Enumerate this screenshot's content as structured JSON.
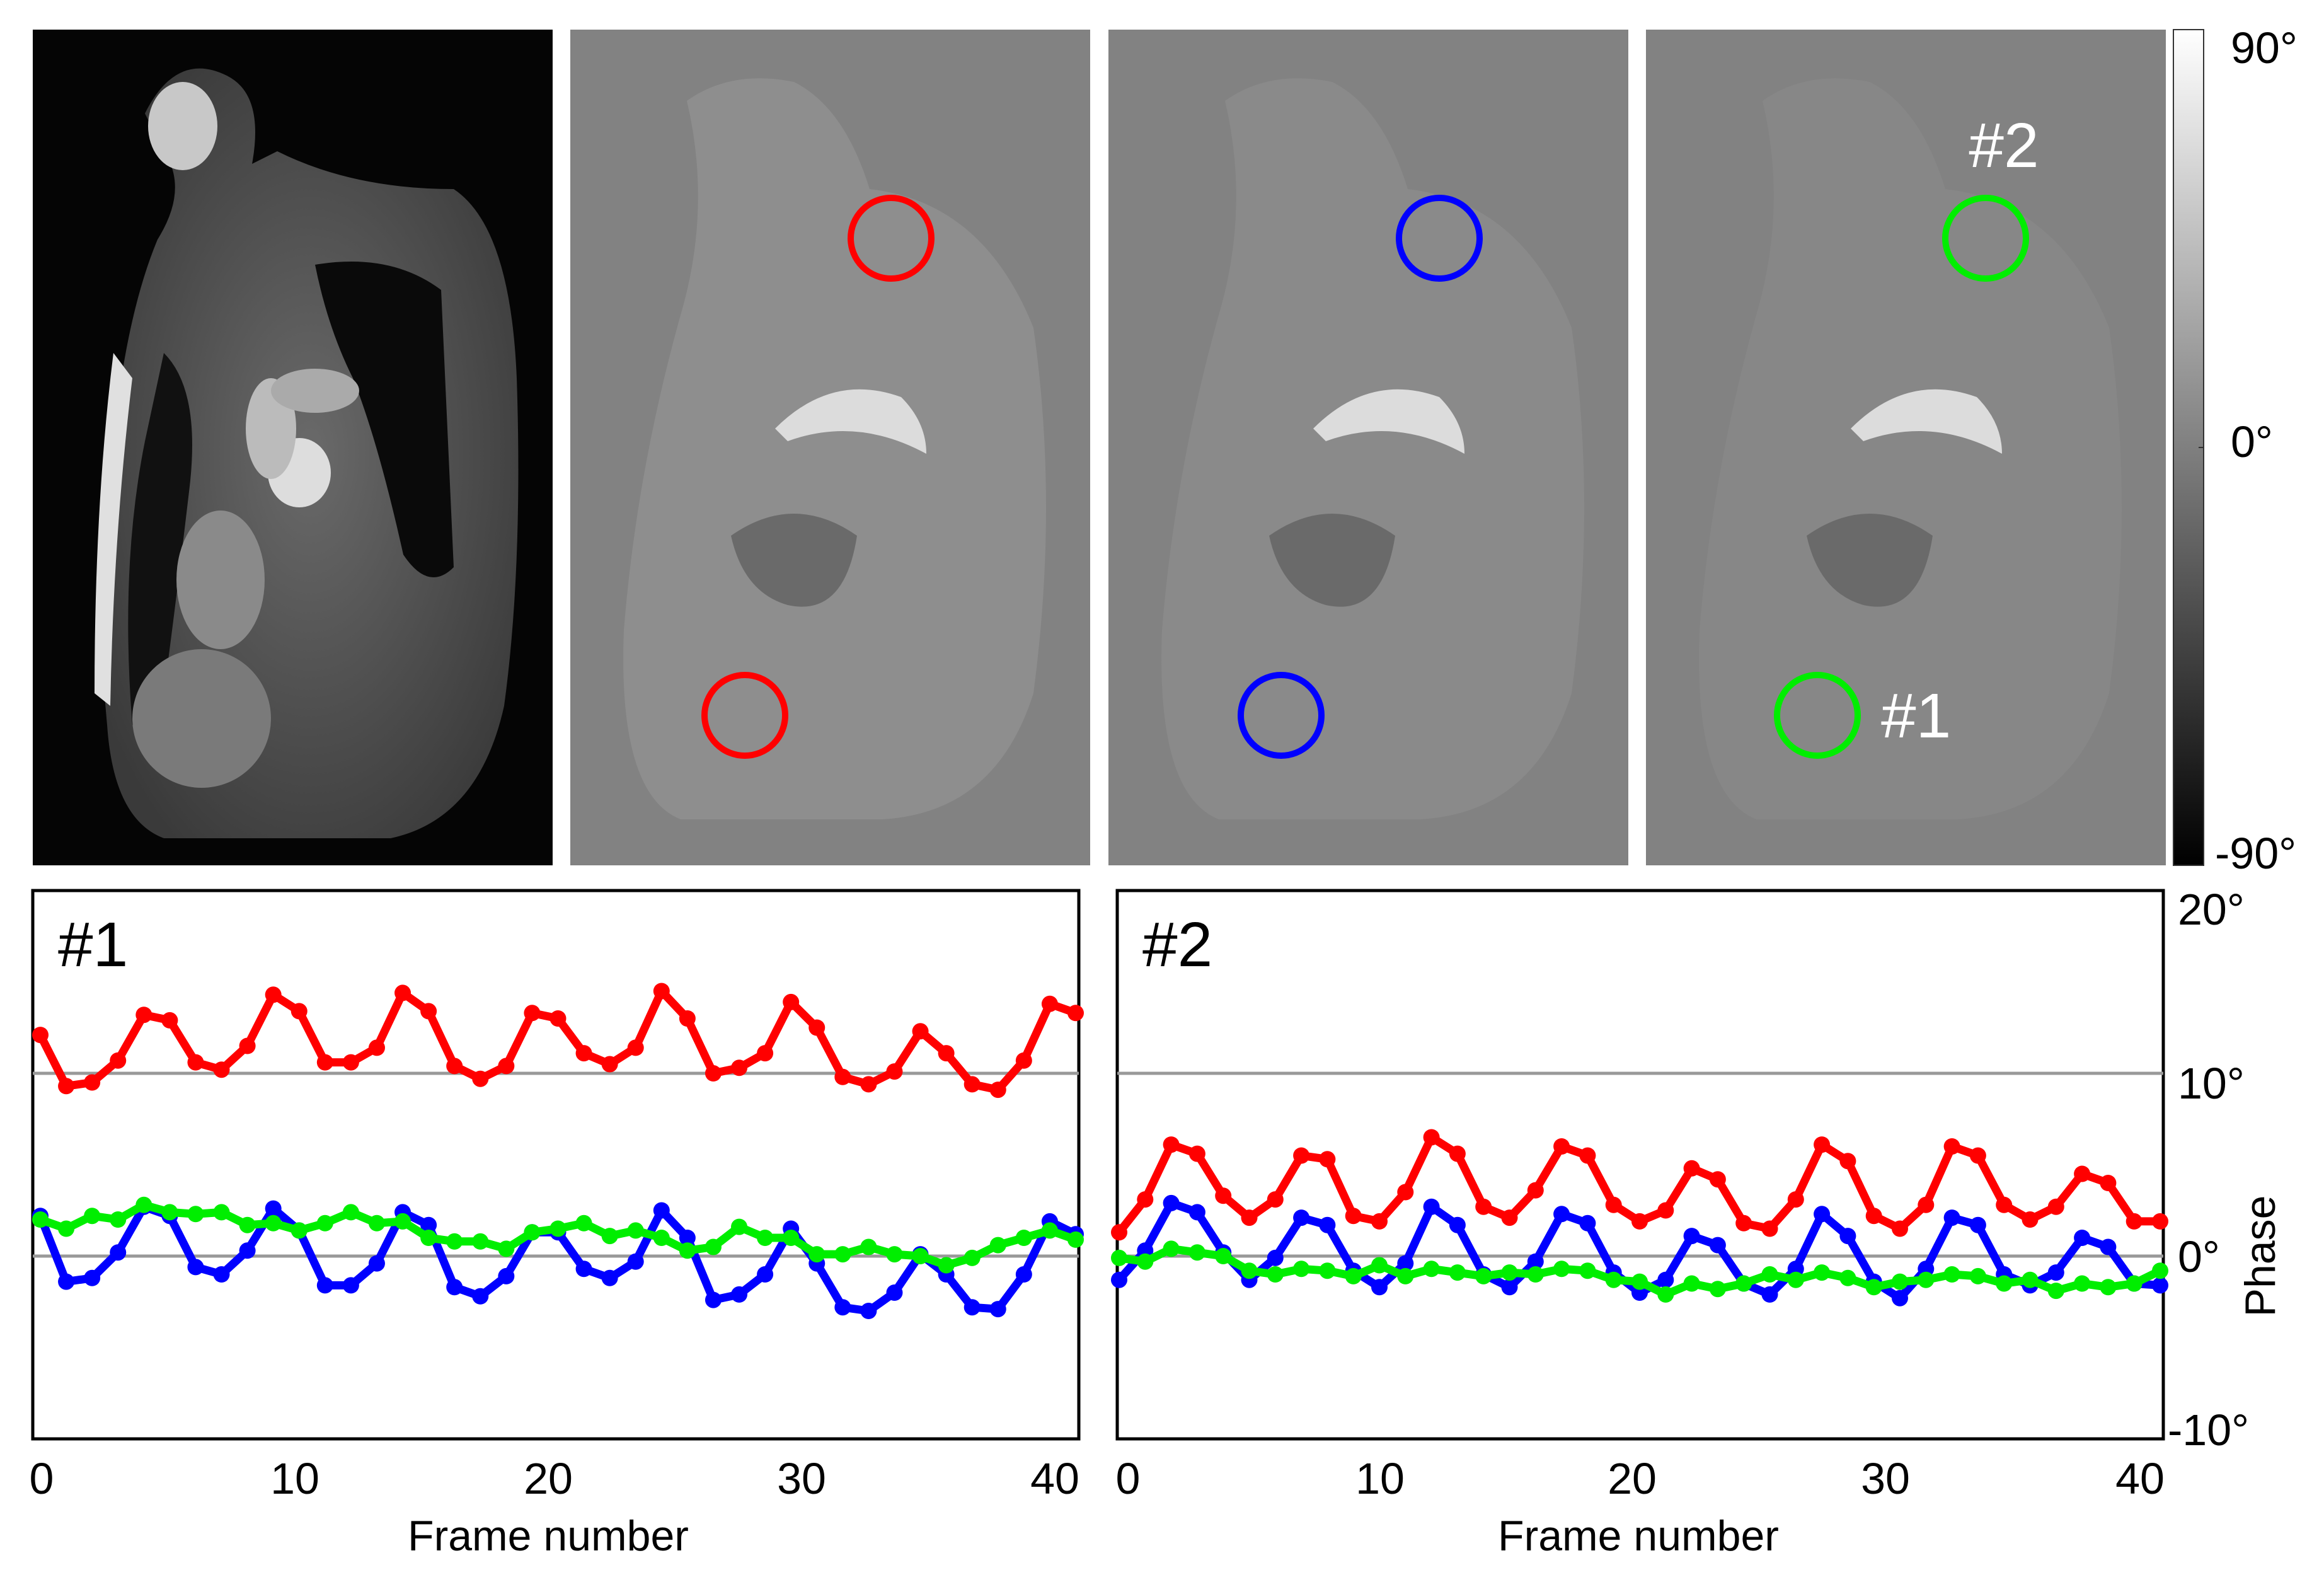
{
  "image_panels": {
    "overlay_labels": {
      "roi1": "#1",
      "roi2": "#2"
    },
    "roi_colors": [
      "#ff0000",
      "#0000ff",
      "#00ee00"
    ]
  },
  "colorbar": {
    "max_label": "90°",
    "mid_label": "0°",
    "min_label": "-90°"
  },
  "chart_data": [
    {
      "type": "line",
      "title": "#1",
      "xlabel": "Frame number",
      "ylabel": "Phase",
      "xlim": [
        0,
        40
      ],
      "ylim": [
        -10,
        20
      ],
      "xticks": [
        "0",
        "10",
        "20",
        "30",
        "40"
      ],
      "yticks": [
        "20°",
        "10°",
        "0°",
        "-10°"
      ],
      "reference_lines": [
        10,
        0
      ],
      "x": [
        0,
        1,
        2,
        3,
        4,
        5,
        6,
        7,
        8,
        9,
        10,
        11,
        12,
        13,
        14,
        15,
        16,
        17,
        18,
        19,
        20,
        21,
        22,
        23,
        24,
        25,
        26,
        27,
        28,
        29,
        30,
        31,
        32,
        33,
        34,
        35,
        36,
        37,
        38,
        39,
        40
      ],
      "series": [
        {
          "name": "red",
          "color": "#ff0000",
          "values": [
            12.1,
            9.3,
            9.5,
            10.7,
            13.2,
            12.9,
            10.6,
            10.2,
            11.5,
            14.3,
            13.4,
            10.6,
            10.6,
            11.4,
            14.4,
            13.4,
            10.4,
            9.7,
            10.4,
            13.3,
            13.0,
            11.1,
            10.5,
            11.4,
            14.5,
            13.0,
            10.0,
            10.3,
            11.1,
            13.9,
            12.5,
            9.8,
            9.4,
            10.1,
            12.3,
            11.1,
            9.4,
            9.1,
            10.7,
            13.8,
            13.3
          ]
        },
        {
          "name": "blue",
          "color": "#0000ff",
          "values": [
            2.2,
            -1.4,
            -1.2,
            0.2,
            2.7,
            2.2,
            -0.6,
            -1.0,
            0.3,
            2.6,
            1.4,
            -1.6,
            -1.6,
            -0.4,
            2.4,
            1.7,
            -1.7,
            -2.2,
            -1.1,
            1.3,
            1.3,
            -0.7,
            -1.2,
            -0.3,
            2.5,
            1.0,
            -2.4,
            -2.1,
            -1.0,
            1.5,
            -0.4,
            -2.8,
            -3.0,
            -2.0,
            0.1,
            -1.0,
            -2.8,
            -2.9,
            -1.0,
            1.9,
            1.2
          ]
        },
        {
          "name": "green",
          "color": "#00ee00",
          "values": [
            2.0,
            1.5,
            2.2,
            2.0,
            2.8,
            2.4,
            2.3,
            2.4,
            1.7,
            1.8,
            1.4,
            1.8,
            2.4,
            1.8,
            1.9,
            1.0,
            0.8,
            0.8,
            0.4,
            1.3,
            1.5,
            1.8,
            1.1,
            1.4,
            1.0,
            0.3,
            0.5,
            1.6,
            1.0,
            1.0,
            0.1,
            0.1,
            0.5,
            0.1,
            0.0,
            -0.5,
            -0.1,
            0.6,
            1.0,
            1.4,
            0.9
          ]
        }
      ]
    },
    {
      "type": "line",
      "title": "#2",
      "xlabel": "Frame number",
      "ylabel": "Phase",
      "xlim": [
        0,
        40
      ],
      "ylim": [
        -10,
        20
      ],
      "xticks": [
        "0",
        "10",
        "20",
        "30",
        "40"
      ],
      "yticks": [
        "20°",
        "10°",
        "0°",
        "-10°"
      ],
      "reference_lines": [
        10,
        0
      ],
      "x": [
        0,
        1,
        2,
        3,
        4,
        5,
        6,
        7,
        8,
        9,
        10,
        11,
        12,
        13,
        14,
        15,
        16,
        17,
        18,
        19,
        20,
        21,
        22,
        23,
        24,
        25,
        26,
        27,
        28,
        29,
        30,
        31,
        32,
        33,
        34,
        35,
        36,
        37,
        38,
        39,
        40
      ],
      "series": [
        {
          "name": "red",
          "color": "#ff0000",
          "values": [
            1.3,
            3.1,
            6.1,
            5.6,
            3.3,
            2.1,
            3.1,
            5.5,
            5.3,
            2.2,
            1.9,
            3.5,
            6.5,
            5.6,
            2.7,
            2.1,
            3.6,
            6.0,
            5.5,
            2.8,
            1.9,
            2.5,
            4.8,
            4.2,
            1.8,
            1.5,
            3.1,
            6.1,
            5.2,
            2.2,
            1.5,
            2.8,
            6.0,
            5.5,
            2.8,
            2.0,
            2.7,
            4.5,
            4.0,
            1.9,
            1.9
          ]
        },
        {
          "name": "blue",
          "color": "#0000ff",
          "values": [
            -1.3,
            0.3,
            2.9,
            2.4,
            0.2,
            -1.3,
            -0.1,
            2.1,
            1.7,
            -0.8,
            -1.7,
            -0.4,
            2.7,
            1.7,
            -1.0,
            -1.7,
            -0.3,
            2.3,
            1.8,
            -0.9,
            -2.0,
            -1.3,
            1.1,
            0.6,
            -1.5,
            -2.1,
            -0.7,
            2.3,
            1.1,
            -1.4,
            -2.3,
            -0.7,
            2.1,
            1.7,
            -1.0,
            -1.6,
            -0.9,
            1.0,
            0.5,
            -1.5,
            -1.6
          ]
        },
        {
          "name": "green",
          "color": "#00ee00",
          "values": [
            -0.1,
            -0.3,
            0.4,
            0.2,
            0.0,
            -0.8,
            -1.0,
            -0.7,
            -0.8,
            -1.1,
            -0.5,
            -1.1,
            -0.7,
            -0.9,
            -1.1,
            -0.9,
            -1.0,
            -0.7,
            -0.8,
            -1.3,
            -1.4,
            -2.1,
            -1.5,
            -1.8,
            -1.5,
            -1.0,
            -1.3,
            -0.9,
            -1.2,
            -1.7,
            -1.4,
            -1.3,
            -1.0,
            -1.1,
            -1.5,
            -1.3,
            -1.9,
            -1.5,
            -1.7,
            -1.5,
            -0.8
          ]
        }
      ]
    }
  ]
}
